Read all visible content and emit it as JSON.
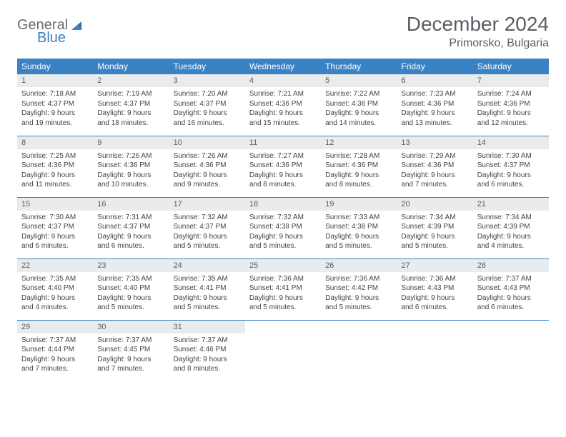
{
  "logo": {
    "word1": "General",
    "word2": "Blue"
  },
  "title": "December 2024",
  "location": "Primorsko, Bulgaria",
  "colors": {
    "header_bg": "#3b82c4",
    "header_text": "#ffffff",
    "daynum_bg": "#e9ebec",
    "row_border": "#3b82c4",
    "title_color": "#595d63",
    "body_text": "#444444",
    "logo_gray": "#6a6f76",
    "logo_blue": "#3b82c4"
  },
  "weekdays": [
    "Sunday",
    "Monday",
    "Tuesday",
    "Wednesday",
    "Thursday",
    "Friday",
    "Saturday"
  ],
  "weeks": [
    [
      {
        "n": "1",
        "sr": "Sunrise: 7:18 AM",
        "ss": "Sunset: 4:37 PM",
        "d1": "Daylight: 9 hours",
        "d2": "and 19 minutes."
      },
      {
        "n": "2",
        "sr": "Sunrise: 7:19 AM",
        "ss": "Sunset: 4:37 PM",
        "d1": "Daylight: 9 hours",
        "d2": "and 18 minutes."
      },
      {
        "n": "3",
        "sr": "Sunrise: 7:20 AM",
        "ss": "Sunset: 4:37 PM",
        "d1": "Daylight: 9 hours",
        "d2": "and 16 minutes."
      },
      {
        "n": "4",
        "sr": "Sunrise: 7:21 AM",
        "ss": "Sunset: 4:36 PM",
        "d1": "Daylight: 9 hours",
        "d2": "and 15 minutes."
      },
      {
        "n": "5",
        "sr": "Sunrise: 7:22 AM",
        "ss": "Sunset: 4:36 PM",
        "d1": "Daylight: 9 hours",
        "d2": "and 14 minutes."
      },
      {
        "n": "6",
        "sr": "Sunrise: 7:23 AM",
        "ss": "Sunset: 4:36 PM",
        "d1": "Daylight: 9 hours",
        "d2": "and 13 minutes."
      },
      {
        "n": "7",
        "sr": "Sunrise: 7:24 AM",
        "ss": "Sunset: 4:36 PM",
        "d1": "Daylight: 9 hours",
        "d2": "and 12 minutes."
      }
    ],
    [
      {
        "n": "8",
        "sr": "Sunrise: 7:25 AM",
        "ss": "Sunset: 4:36 PM",
        "d1": "Daylight: 9 hours",
        "d2": "and 11 minutes."
      },
      {
        "n": "9",
        "sr": "Sunrise: 7:26 AM",
        "ss": "Sunset: 4:36 PM",
        "d1": "Daylight: 9 hours",
        "d2": "and 10 minutes."
      },
      {
        "n": "10",
        "sr": "Sunrise: 7:26 AM",
        "ss": "Sunset: 4:36 PM",
        "d1": "Daylight: 9 hours",
        "d2": "and 9 minutes."
      },
      {
        "n": "11",
        "sr": "Sunrise: 7:27 AM",
        "ss": "Sunset: 4:36 PM",
        "d1": "Daylight: 9 hours",
        "d2": "and 8 minutes."
      },
      {
        "n": "12",
        "sr": "Sunrise: 7:28 AM",
        "ss": "Sunset: 4:36 PM",
        "d1": "Daylight: 9 hours",
        "d2": "and 8 minutes."
      },
      {
        "n": "13",
        "sr": "Sunrise: 7:29 AM",
        "ss": "Sunset: 4:36 PM",
        "d1": "Daylight: 9 hours",
        "d2": "and 7 minutes."
      },
      {
        "n": "14",
        "sr": "Sunrise: 7:30 AM",
        "ss": "Sunset: 4:37 PM",
        "d1": "Daylight: 9 hours",
        "d2": "and 6 minutes."
      }
    ],
    [
      {
        "n": "15",
        "sr": "Sunrise: 7:30 AM",
        "ss": "Sunset: 4:37 PM",
        "d1": "Daylight: 9 hours",
        "d2": "and 6 minutes."
      },
      {
        "n": "16",
        "sr": "Sunrise: 7:31 AM",
        "ss": "Sunset: 4:37 PM",
        "d1": "Daylight: 9 hours",
        "d2": "and 6 minutes."
      },
      {
        "n": "17",
        "sr": "Sunrise: 7:32 AM",
        "ss": "Sunset: 4:37 PM",
        "d1": "Daylight: 9 hours",
        "d2": "and 5 minutes."
      },
      {
        "n": "18",
        "sr": "Sunrise: 7:32 AM",
        "ss": "Sunset: 4:38 PM",
        "d1": "Daylight: 9 hours",
        "d2": "and 5 minutes."
      },
      {
        "n": "19",
        "sr": "Sunrise: 7:33 AM",
        "ss": "Sunset: 4:38 PM",
        "d1": "Daylight: 9 hours",
        "d2": "and 5 minutes."
      },
      {
        "n": "20",
        "sr": "Sunrise: 7:34 AM",
        "ss": "Sunset: 4:39 PM",
        "d1": "Daylight: 9 hours",
        "d2": "and 5 minutes."
      },
      {
        "n": "21",
        "sr": "Sunrise: 7:34 AM",
        "ss": "Sunset: 4:39 PM",
        "d1": "Daylight: 9 hours",
        "d2": "and 4 minutes."
      }
    ],
    [
      {
        "n": "22",
        "sr": "Sunrise: 7:35 AM",
        "ss": "Sunset: 4:40 PM",
        "d1": "Daylight: 9 hours",
        "d2": "and 4 minutes."
      },
      {
        "n": "23",
        "sr": "Sunrise: 7:35 AM",
        "ss": "Sunset: 4:40 PM",
        "d1": "Daylight: 9 hours",
        "d2": "and 5 minutes."
      },
      {
        "n": "24",
        "sr": "Sunrise: 7:35 AM",
        "ss": "Sunset: 4:41 PM",
        "d1": "Daylight: 9 hours",
        "d2": "and 5 minutes."
      },
      {
        "n": "25",
        "sr": "Sunrise: 7:36 AM",
        "ss": "Sunset: 4:41 PM",
        "d1": "Daylight: 9 hours",
        "d2": "and 5 minutes."
      },
      {
        "n": "26",
        "sr": "Sunrise: 7:36 AM",
        "ss": "Sunset: 4:42 PM",
        "d1": "Daylight: 9 hours",
        "d2": "and 5 minutes."
      },
      {
        "n": "27",
        "sr": "Sunrise: 7:36 AM",
        "ss": "Sunset: 4:43 PM",
        "d1": "Daylight: 9 hours",
        "d2": "and 6 minutes."
      },
      {
        "n": "28",
        "sr": "Sunrise: 7:37 AM",
        "ss": "Sunset: 4:43 PM",
        "d1": "Daylight: 9 hours",
        "d2": "and 6 minutes."
      }
    ],
    [
      {
        "n": "29",
        "sr": "Sunrise: 7:37 AM",
        "ss": "Sunset: 4:44 PM",
        "d1": "Daylight: 9 hours",
        "d2": "and 7 minutes."
      },
      {
        "n": "30",
        "sr": "Sunrise: 7:37 AM",
        "ss": "Sunset: 4:45 PM",
        "d1": "Daylight: 9 hours",
        "d2": "and 7 minutes."
      },
      {
        "n": "31",
        "sr": "Sunrise: 7:37 AM",
        "ss": "Sunset: 4:46 PM",
        "d1": "Daylight: 9 hours",
        "d2": "and 8 minutes."
      },
      null,
      null,
      null,
      null
    ]
  ]
}
